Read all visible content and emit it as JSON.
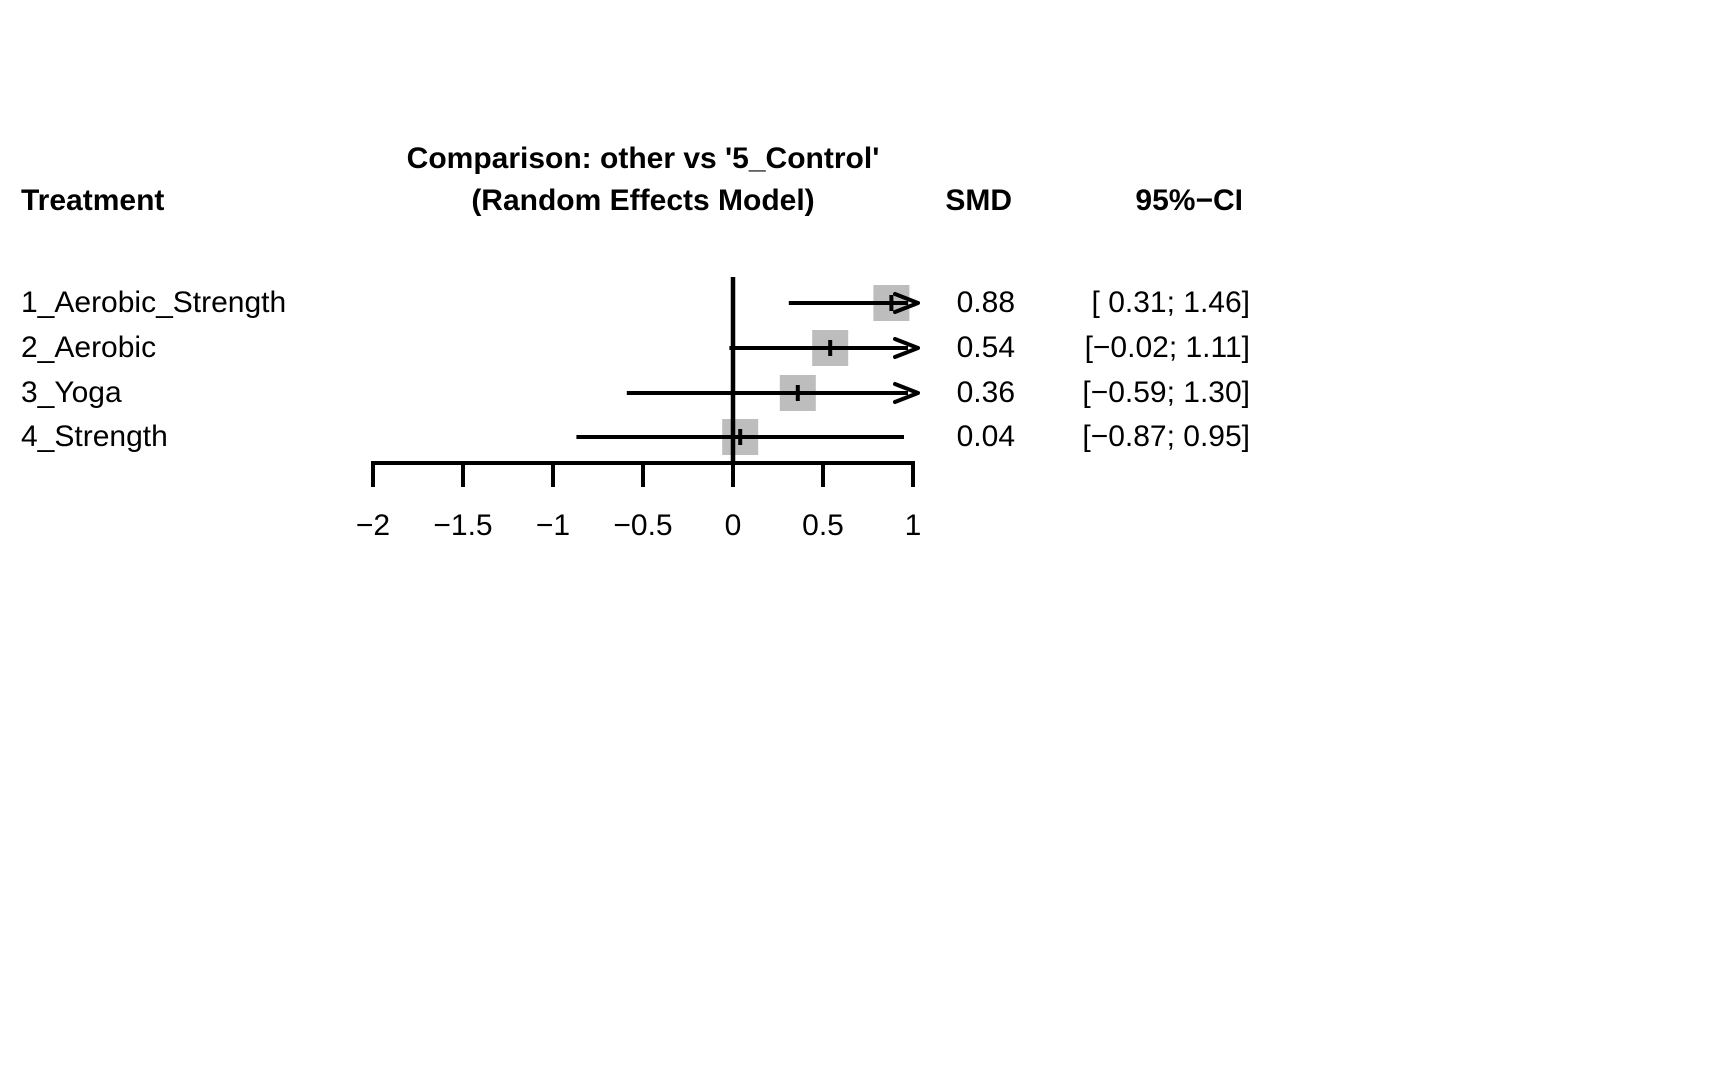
{
  "title": {
    "line1": "Comparison: other vs '5_Control'",
    "line2": "(Random Effects Model)"
  },
  "columns": {
    "treatment": "Treatment",
    "smd": "SMD",
    "ci": "95%−CI"
  },
  "chart_data": {
    "type": "forest",
    "title": "Comparison: other vs '5_Control' (Random Effects Model)",
    "effect_measure": "SMD",
    "reference_line": 0,
    "axis": {
      "min": -2,
      "max": 1,
      "ticks": [
        -2,
        -1.5,
        -1,
        -0.5,
        0,
        0.5,
        1
      ],
      "tick_labels": [
        "−2",
        "−1.5",
        "−1",
        "−0.5",
        "0",
        "0.5",
        "1"
      ]
    },
    "rows": [
      {
        "label": "1_Aerobic_Strength",
        "smd": 0.88,
        "ci_lower": 0.31,
        "ci_upper": 1.46,
        "smd_text": "0.88",
        "ci_text": "[ 0.31; 1.46]"
      },
      {
        "label": "2_Aerobic",
        "smd": 0.54,
        "ci_lower": -0.02,
        "ci_upper": 1.11,
        "smd_text": "0.54",
        "ci_text": "[−0.02; 1.11]"
      },
      {
        "label": "3_Yoga",
        "smd": 0.36,
        "ci_lower": -0.59,
        "ci_upper": 1.3,
        "smd_text": "0.36",
        "ci_text": "[−0.59; 1.30]"
      },
      {
        "label": "4_Strength",
        "smd": 0.04,
        "ci_lower": -0.87,
        "ci_upper": 0.95,
        "smd_text": "0.04",
        "ci_text": "[−0.87; 0.95]"
      }
    ],
    "colors": {
      "marker_fill": "#bdbdbd",
      "line": "#000000",
      "text": "#000000",
      "background": "#ffffff"
    }
  }
}
